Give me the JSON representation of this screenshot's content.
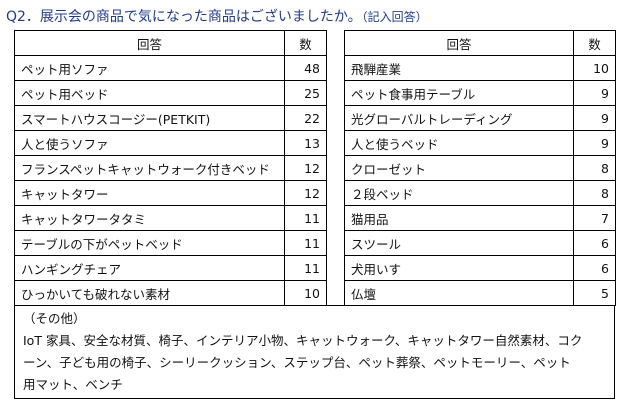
{
  "title": "Q2．展示会の商品で気になった商品はございましたか。",
  "title_note": "（記入回答）",
  "headers": {
    "answer": "回答",
    "count": "数"
  },
  "left_rows": [
    {
      "answer": "ペット用ソファ",
      "count": "48"
    },
    {
      "answer": "ペット用ベッド",
      "count": "25"
    },
    {
      "answer": "スマートハウスコージー(PETKIT)",
      "count": "22"
    },
    {
      "answer": "人と使うソファ",
      "count": "13"
    },
    {
      "answer": "フランスペットキャットウォーク付きベッド",
      "count": "12"
    },
    {
      "answer": "キャットタワー",
      "count": "12"
    },
    {
      "answer": "キャットタワータタミ",
      "count": "11"
    },
    {
      "answer": "テーブルの下がペットベッド",
      "count": "11"
    },
    {
      "answer": "ハンギングチェア",
      "count": "11"
    },
    {
      "answer": "ひっかいても破れない素材",
      "count": "10"
    }
  ],
  "right_rows": [
    {
      "answer": "飛騨産業",
      "count": "10"
    },
    {
      "answer": "ペット食事用テーブル",
      "count": "9"
    },
    {
      "answer": "光グローバルトレーディング",
      "count": "9"
    },
    {
      "answer": "人と使うベッド",
      "count": "9"
    },
    {
      "answer": "クローゼット",
      "count": "8"
    },
    {
      "answer": "２段ベッド",
      "count": "8"
    },
    {
      "answer": "猫用品",
      "count": "7"
    },
    {
      "answer": "スツール",
      "count": "6"
    },
    {
      "answer": "犬用いす",
      "count": "6"
    },
    {
      "answer": "仏壇",
      "count": "5"
    }
  ],
  "other": {
    "heading": "（その他）",
    "line1": "IoT 家具、安全な材質、椅子、インテリア小物、キャットウォーク、キャットタワー自然素材、コク",
    "line2": "ーン、子ども用の椅子、シーリークッション、ステップ台、ペット葬祭、ペットモーリー、ペット",
    "line3": "用マット、ベンチ"
  }
}
